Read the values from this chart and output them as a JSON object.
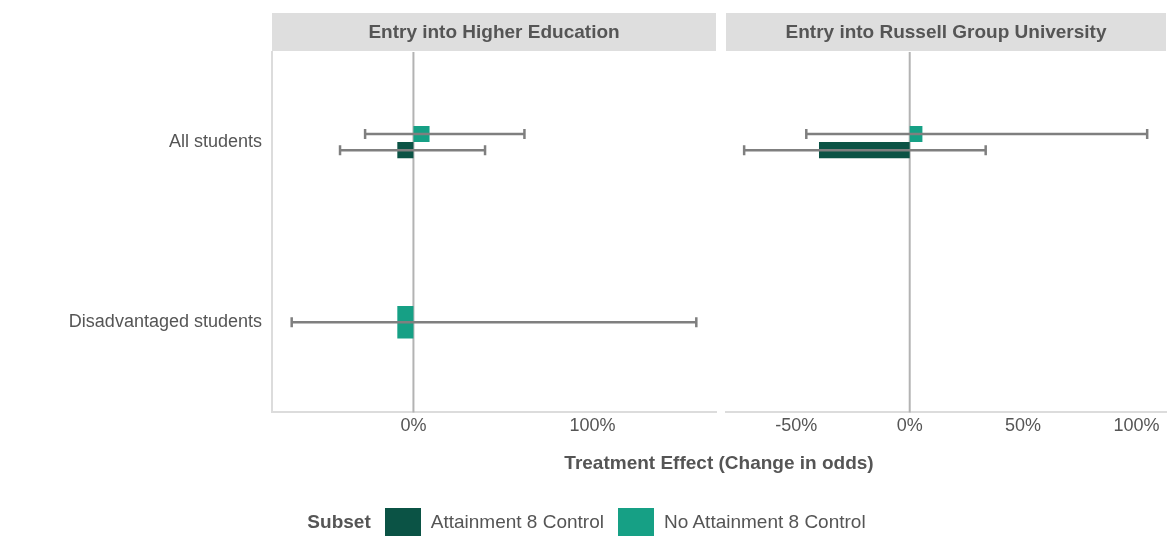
{
  "chart_data": [
    {
      "type": "bar",
      "orientation": "horizontal",
      "title": "Entry into Higher Education",
      "xlabel": "Treatment Effect (Change in odds)",
      "legend_title": "Subset",
      "legend": "bottom",
      "grid": false,
      "categories": [
        "All students",
        "Disadvantaged students"
      ],
      "xlim": [
        -79,
        169
      ],
      "xticks": [
        {
          "value": 0,
          "label": "0%"
        },
        {
          "value": 100,
          "label": "100%"
        }
      ],
      "ref_lines": [
        {
          "axis": "x",
          "value": 0,
          "color": "#b3b3b3"
        }
      ],
      "series": [
        {
          "name": "Attainment 8 Control",
          "color": "#0b5345",
          "values": [
            -9,
            null
          ],
          "errors": [
            [
              -41,
              40
            ],
            null
          ]
        },
        {
          "name": "No Attainment 8 Control",
          "color": "#16a085",
          "values": [
            9,
            -9
          ],
          "errors": [
            [
              -27,
              62
            ],
            [
              -68,
              158
            ]
          ]
        }
      ]
    },
    {
      "type": "bar",
      "orientation": "horizontal",
      "title": "Entry into Russell Group University",
      "tick_labels": "x",
      "grid": false,
      "xlim": [
        -81,
        113
      ],
      "xticks": [
        {
          "value": -50,
          "label": "-50%"
        },
        {
          "value": 0,
          "label": "0%"
        },
        {
          "value": 50,
          "label": "50%"
        },
        {
          "value": 100,
          "label": "100%"
        }
      ],
      "ref_lines": [
        {
          "axis": "x",
          "value": 0,
          "color": "#b3b3b3"
        }
      ],
      "series": [
        {
          "name": "Attainment 8 Control",
          "color": "#0b5345",
          "values": [
            -40,
            null
          ],
          "errors": [
            [
              -73,
              33.5
            ],
            null
          ]
        },
        {
          "name": "No Attainment 8 Control",
          "color": "#16a085",
          "values": [
            5.6,
            null
          ],
          "errors": [
            [
              -45.6,
              104.7
            ],
            null
          ]
        }
      ]
    }
  ]
}
